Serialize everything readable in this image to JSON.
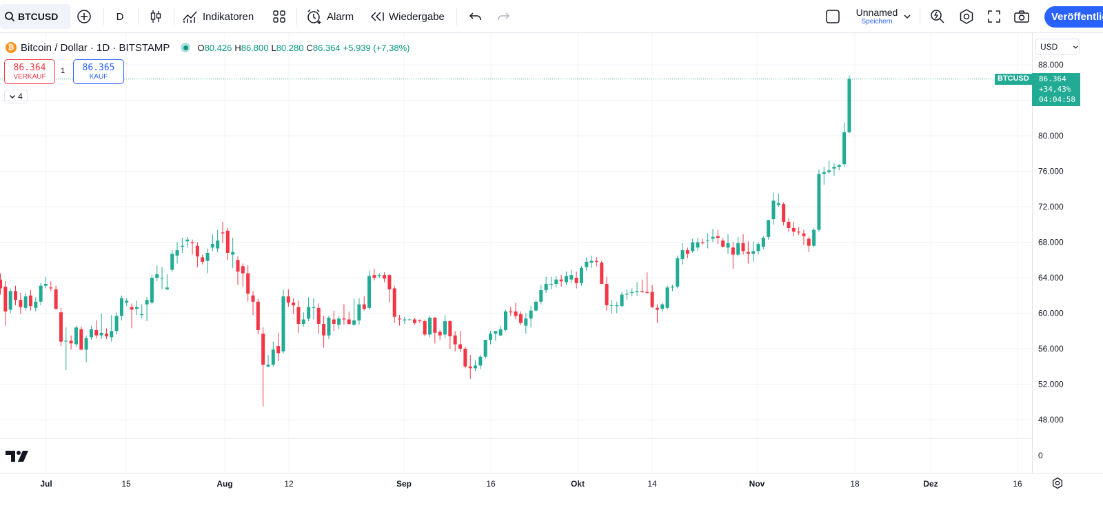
{
  "toolbar": {
    "symbol": "BTCUSD",
    "interval": "D",
    "indicators": "Indikatoren",
    "alert": "Alarm",
    "replay": "Wiedergabe",
    "layout_name": "Unnamed",
    "layout_save": "Speichern",
    "publish": "Veröffentlichen"
  },
  "legend": {
    "title": "Bitcoin / Dollar · 1D · BITSTAMP",
    "logo_letter": "₿",
    "o_label": "O",
    "o": "80.426",
    "h_label": "H",
    "h": "86.800",
    "l_label": "L",
    "l": "80.280",
    "c_label": "C",
    "c": "86.364",
    "change": "+5.939 (+7,38%)"
  },
  "trade": {
    "sell_price": "86.364",
    "sell_label": "VERKAUF",
    "buy_price": "86.365",
    "buy_label": "KAUF",
    "spread": "1",
    "collapsed_count": "4"
  },
  "axis": {
    "currency": "USD",
    "price_labels": [
      "88.000",
      "84.000",
      "80.000",
      "76.000",
      "72.000",
      "68.000",
      "64.000",
      "60.000",
      "56.000",
      "52.000",
      "48.000",
      "0"
    ],
    "time_labels": [
      "Jul",
      "15",
      "Aug",
      "12",
      "Sep",
      "16",
      "Okt",
      "14",
      "Nov",
      "18",
      "Dez",
      "16"
    ]
  },
  "last_price": {
    "symbol": "BTCUSD",
    "price": "86.364",
    "change": "+34,43%",
    "countdown": "04:04:58"
  },
  "colors": {
    "up": "#22ab94",
    "down": "#f23645",
    "accent": "#2962ff"
  },
  "chart_data": {
    "type": "candlestick",
    "ylim": [
      46000,
      90000
    ],
    "ohlc": [
      [
        63800,
        64500,
        62100,
        62800
      ],
      [
        63000,
        63600,
        58600,
        60200
      ],
      [
        60400,
        62800,
        60000,
        62500
      ],
      [
        62500,
        63100,
        60900,
        61500
      ],
      [
        61500,
        62300,
        59900,
        60700
      ],
      [
        60600,
        62300,
        60300,
        61900
      ],
      [
        62000,
        62600,
        60300,
        60800
      ],
      [
        60600,
        61800,
        60200,
        61300
      ],
      [
        61300,
        63400,
        60900,
        63100
      ],
      [
        63100,
        64100,
        62800,
        63300
      ],
      [
        62900,
        63600,
        62500,
        62800
      ],
      [
        62700,
        63100,
        60400,
        60500
      ],
      [
        60100,
        60600,
        56300,
        56800
      ],
      [
        56900,
        58400,
        53600,
        56900
      ],
      [
        56900,
        57500,
        55900,
        56600
      ],
      [
        56500,
        58600,
        56200,
        58400
      ],
      [
        58200,
        58500,
        55800,
        55900
      ],
      [
        55900,
        57500,
        54500,
        57200
      ],
      [
        57300,
        58600,
        57000,
        58200
      ],
      [
        58100,
        59200,
        57200,
        57500
      ],
      [
        57500,
        60000,
        57100,
        57800
      ],
      [
        57700,
        58300,
        57100,
        57400
      ],
      [
        57300,
        59800,
        56800,
        58000
      ],
      [
        58000,
        60100,
        57600,
        59700
      ],
      [
        59700,
        62000,
        59200,
        61700
      ],
      [
        61200,
        61700,
        60800,
        61400
      ],
      [
        60700,
        61100,
        58300,
        60400
      ],
      [
        60500,
        61400,
        59800,
        60700
      ],
      [
        59800,
        61000,
        59400,
        59900
      ],
      [
        61000,
        61800,
        59100,
        61500
      ],
      [
        61200,
        64300,
        61000,
        64000
      ],
      [
        64000,
        65400,
        63600,
        64400
      ],
      [
        64000,
        65200,
        62700,
        64000
      ],
      [
        62700,
        64400,
        62600,
        62900
      ],
      [
        64900,
        67100,
        64700,
        66700
      ],
      [
        66500,
        68000,
        65600,
        67100
      ],
      [
        67500,
        68500,
        66800,
        67600
      ],
      [
        68100,
        68600,
        67400,
        68300
      ],
      [
        68000,
        68300,
        66600,
        67900
      ],
      [
        67600,
        68000,
        65200,
        66400
      ],
      [
        66300,
        66600,
        65500,
        65800
      ],
      [
        65900,
        67300,
        64500,
        66800
      ],
      [
        67400,
        68900,
        67000,
        67800
      ],
      [
        67300,
        69400,
        66900,
        68200
      ],
      [
        69100,
        70300,
        67900,
        69000
      ],
      [
        69300,
        69600,
        66000,
        66800
      ],
      [
        66600,
        68500,
        65100,
        66900
      ],
      [
        66000,
        66400,
        63200,
        64700
      ],
      [
        65300,
        65600,
        63000,
        64500
      ],
      [
        64500,
        65400,
        61300,
        62200
      ],
      [
        62000,
        62500,
        59800,
        61300
      ],
      [
        61300,
        61600,
        57600,
        58100
      ],
      [
        57700,
        58400,
        49500,
        54200
      ],
      [
        54000,
        55300,
        53900,
        54200
      ],
      [
        54200,
        56800,
        54000,
        55900
      ],
      [
        56300,
        57800,
        54600,
        55500
      ],
      [
        55700,
        62700,
        55500,
        61900
      ],
      [
        61900,
        62700,
        60700,
        61200
      ],
      [
        61200,
        61700,
        59900,
        60900
      ],
      [
        60700,
        61400,
        57800,
        58800
      ],
      [
        58800,
        60100,
        58500,
        59300
      ],
      [
        59400,
        61800,
        59100,
        60700
      ],
      [
        60600,
        61700,
        59300,
        60700
      ],
      [
        60600,
        61100,
        57700,
        58800
      ],
      [
        58800,
        59700,
        56100,
        57500
      ],
      [
        57500,
        59700,
        57100,
        59500
      ],
      [
        59300,
        60300,
        58000,
        58800
      ],
      [
        58700,
        59700,
        58200,
        59400
      ],
      [
        59400,
        61000,
        58700,
        59300
      ],
      [
        59300,
        60200,
        58700,
        58800
      ],
      [
        58700,
        61600,
        58600,
        59200
      ],
      [
        59200,
        61700,
        58700,
        61000
      ],
      [
        61000,
        61900,
        60300,
        60500
      ],
      [
        60600,
        64800,
        60400,
        64200
      ],
      [
        64300,
        65000,
        63700,
        64000
      ],
      [
        64200,
        64500,
        64000,
        64300
      ],
      [
        64300,
        64600,
        63500,
        63900
      ],
      [
        64300,
        64400,
        61200,
        62700
      ],
      [
        62800,
        63100,
        58900,
        59600
      ],
      [
        59400,
        59800,
        58600,
        59300
      ],
      [
        59200,
        59600,
        58800,
        59300
      ],
      [
        59300,
        59400,
        59200,
        59300
      ],
      [
        59300,
        59500,
        58700,
        58900
      ],
      [
        59200,
        59300,
        58900,
        59100
      ],
      [
        59100,
        59300,
        57400,
        57600
      ],
      [
        57600,
        59700,
        57300,
        59500
      ],
      [
        59500,
        59600,
        56600,
        57800
      ],
      [
        57900,
        58100,
        57000,
        57500
      ],
      [
        57600,
        59800,
        57200,
        59100
      ],
      [
        59100,
        59200,
        56000,
        57400
      ],
      [
        57500,
        58000,
        55700,
        56500
      ],
      [
        56500,
        58000,
        55600,
        56000
      ],
      [
        56000,
        56200,
        53800,
        54000
      ],
      [
        54000,
        55300,
        52600,
        53800
      ],
      [
        53800,
        54700,
        53500,
        54100
      ],
      [
        54100,
        55300,
        53700,
        55100
      ],
      [
        55100,
        57000,
        54900,
        57000
      ],
      [
        57000,
        58000,
        56500,
        57700
      ],
      [
        57700,
        58000,
        56900,
        58000
      ],
      [
        57500,
        58600,
        57400,
        58200
      ],
      [
        58100,
        60400,
        58000,
        60200
      ],
      [
        60200,
        60700,
        59700,
        60100
      ],
      [
        60200,
        61200,
        59300,
        59700
      ],
      [
        59900,
        60200,
        58700,
        58900
      ],
      [
        58600,
        60000,
        57700,
        59400
      ],
      [
        59400,
        60800,
        58400,
        60300
      ],
      [
        60300,
        61500,
        60200,
        61300
      ],
      [
        61300,
        63200,
        61000,
        62600
      ],
      [
        62600,
        64100,
        62300,
        63300
      ],
      [
        63300,
        64100,
        62700,
        63300
      ],
      [
        63300,
        64200,
        62900,
        63800
      ],
      [
        63800,
        64300,
        63000,
        63600
      ],
      [
        63500,
        64700,
        63200,
        64200
      ],
      [
        63800,
        64900,
        63400,
        64300
      ],
      [
        64000,
        64700,
        62800,
        63400
      ],
      [
        63400,
        65300,
        63100,
        65100
      ],
      [
        65200,
        66300,
        64800,
        65800
      ],
      [
        65700,
        66500,
        65100,
        65900
      ],
      [
        65900,
        66300,
        65300,
        65800
      ],
      [
        65700,
        65900,
        63600,
        63300
      ],
      [
        63300,
        64100,
        60300,
        60900
      ],
      [
        60900,
        61500,
        60000,
        60900
      ],
      [
        60800,
        61300,
        60000,
        60900
      ],
      [
        60800,
        62400,
        60700,
        62100
      ],
      [
        62100,
        62700,
        61500,
        62200
      ],
      [
        62300,
        62800,
        61900,
        62400
      ],
      [
        62400,
        63500,
        62000,
        62500
      ],
      [
        62500,
        63800,
        62300,
        62400
      ],
      [
        62400,
        64600,
        62200,
        62300
      ],
      [
        62400,
        63200,
        60600,
        60700
      ],
      [
        60600,
        61000,
        58900,
        60400
      ],
      [
        60500,
        61200,
        60200,
        61000
      ],
      [
        60600,
        63100,
        60400,
        62900
      ],
      [
        62900,
        63200,
        62500,
        63000
      ],
      [
        63000,
        66500,
        62800,
        66200
      ],
      [
        66100,
        67900,
        65500,
        67100
      ],
      [
        67100,
        67400,
        66200,
        66700
      ],
      [
        67000,
        68400,
        66800,
        68000
      ],
      [
        67400,
        68500,
        67000,
        68000
      ],
      [
        68000,
        68400,
        67700,
        67900
      ],
      [
        68200,
        69000,
        67300,
        68200
      ],
      [
        68400,
        69500,
        68000,
        68600
      ],
      [
        68700,
        69400,
        67800,
        68500
      ],
      [
        68200,
        68500,
        67400,
        67500
      ],
      [
        67400,
        68900,
        66700,
        67900
      ],
      [
        67400,
        68000,
        65000,
        66600
      ],
      [
        66600,
        68600,
        66400,
        67900
      ],
      [
        67900,
        68900,
        66600,
        67000
      ],
      [
        66900,
        68100,
        65600,
        66700
      ],
      [
        66700,
        68100,
        65800,
        67000
      ],
      [
        67000,
        68000,
        66600,
        67800
      ],
      [
        67500,
        68700,
        67200,
        68500
      ],
      [
        68600,
        70500,
        68300,
        70500
      ],
      [
        70600,
        73600,
        70000,
        72700
      ],
      [
        72200,
        73500,
        72000,
        72400
      ],
      [
        72300,
        72500,
        69900,
        70300
      ],
      [
        70300,
        70700,
        69200,
        69600
      ],
      [
        69600,
        70300,
        68700,
        69200
      ],
      [
        69200,
        69700,
        68800,
        69100
      ],
      [
        69000,
        69400,
        67700,
        68700
      ],
      [
        68400,
        68600,
        66900,
        67600
      ],
      [
        67600,
        69600,
        67400,
        69400
      ],
      [
        69400,
        76200,
        69200,
        75700
      ],
      [
        75700,
        76500,
        74500,
        75900
      ],
      [
        75900,
        77200,
        75700,
        76100
      ],
      [
        76300,
        76900,
        75500,
        76500
      ],
      [
        76500,
        76800,
        76100,
        76700
      ],
      [
        76800,
        81500,
        76500,
        80400
      ],
      [
        80400,
        86800,
        80300,
        86400
      ]
    ]
  }
}
